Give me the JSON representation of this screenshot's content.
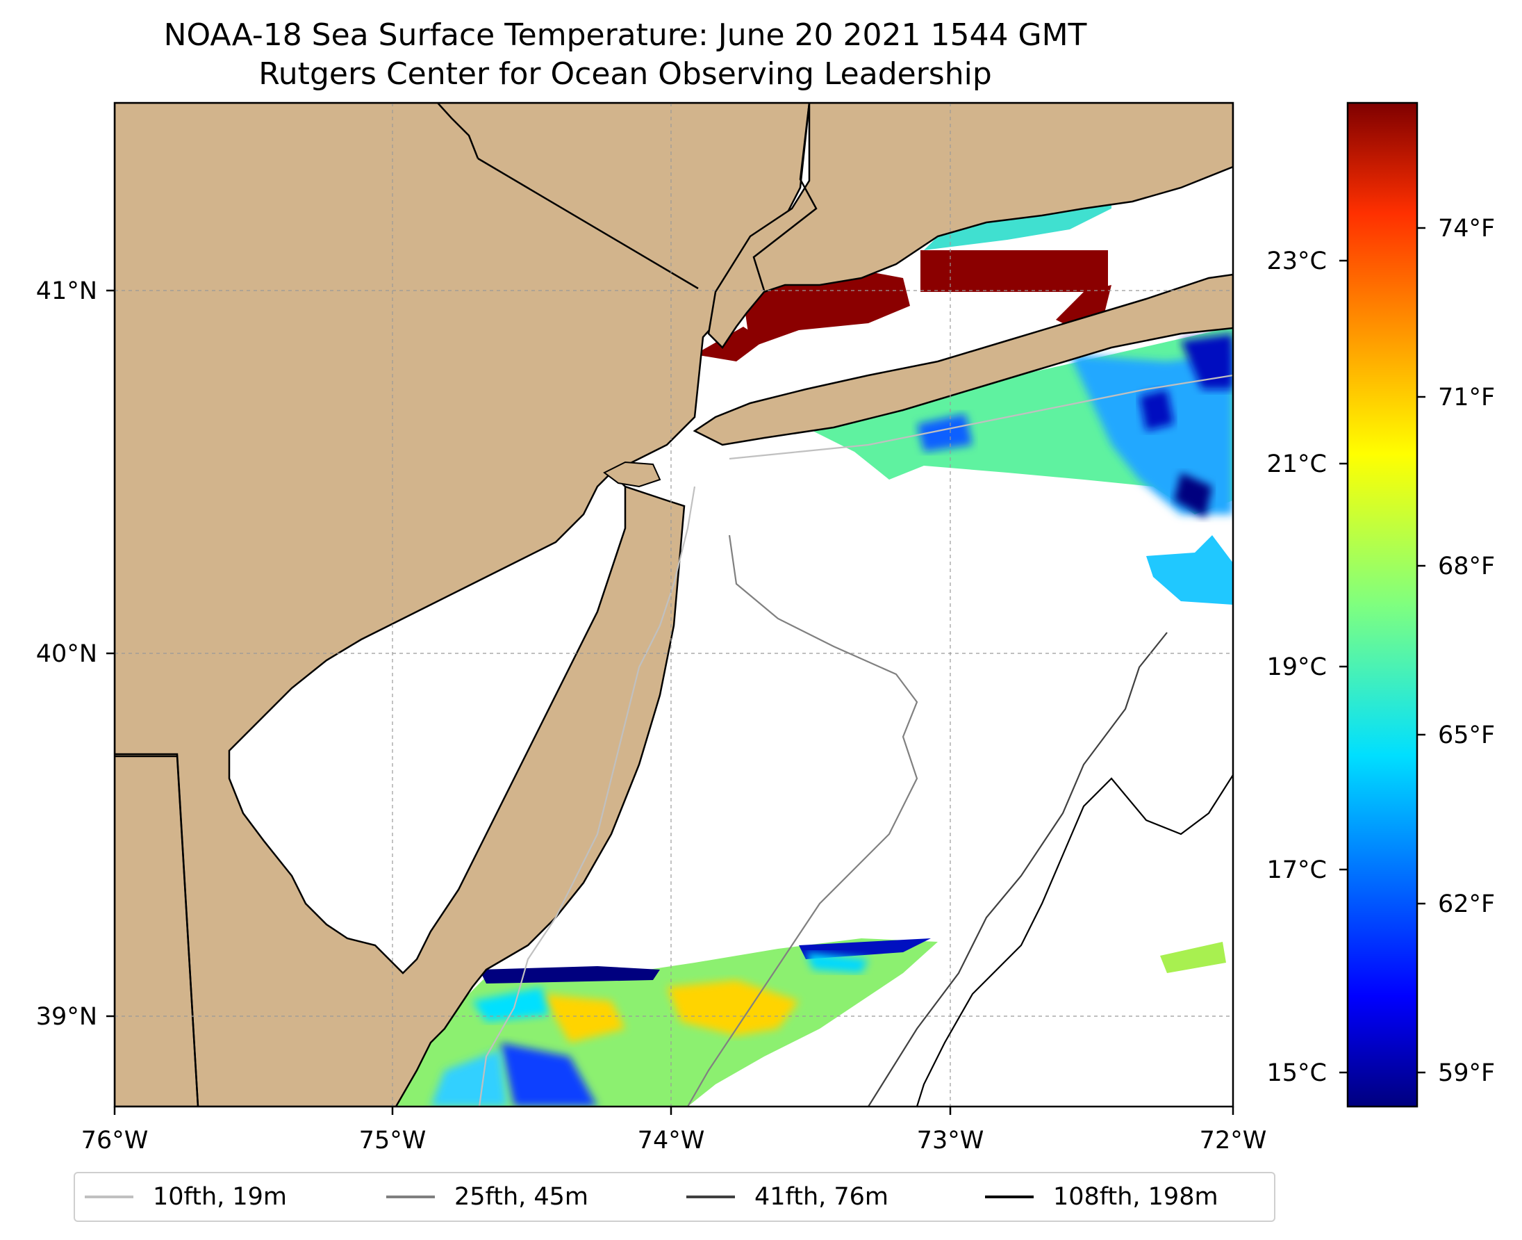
{
  "title": {
    "line1": "NOAA-18 Sea Surface Temperature: June 20 2021 1544 GMT",
    "line2": "Rutgers Center for Ocean Observing Leadership"
  },
  "map": {
    "lon_range": [
      -76,
      -72
    ],
    "lat_range": [
      38.75,
      41.5
    ],
    "land_color": "#D2B48C",
    "coast_color": "#000000",
    "grid": true,
    "x_ticks": [
      "76°W",
      "75°W",
      "74°W",
      "73°W",
      "72°W"
    ],
    "y_ticks": [
      "41°N",
      "40°N",
      "39°N"
    ]
  },
  "colorbar": {
    "colormap": "jet",
    "celsius_ticks": [
      "23°C",
      "21°C",
      "19°C",
      "17°C",
      "15°C"
    ],
    "fahrenheit_ticks": [
      "74°F",
      "71°F",
      "68°F",
      "65°F",
      "62°F",
      "59°F"
    ]
  },
  "legend": {
    "items": [
      {
        "label": "10fth, 19m",
        "color": "#c0c0c0"
      },
      {
        "label": "25fth, 45m",
        "color": "#808080"
      },
      {
        "label": "41fth, 76m",
        "color": "#404040"
      },
      {
        "label": "108fth, 198m",
        "color": "#000000"
      }
    ]
  }
}
